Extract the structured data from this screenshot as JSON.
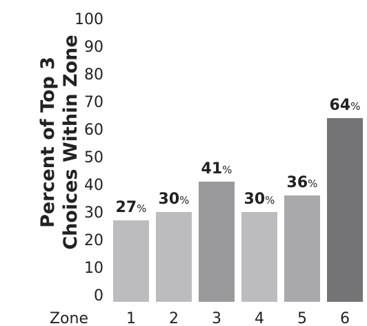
{
  "chart_data": {
    "type": "bar",
    "ylabel_lines": [
      "Percent of Top 3",
      "Choices Within Zone"
    ],
    "xlabel": "Zone",
    "categories": [
      "1",
      "2",
      "3",
      "4",
      "5",
      "6"
    ],
    "values": [
      27,
      30,
      41,
      30,
      36,
      64
    ],
    "value_labels": [
      "27%",
      "30%",
      "41%",
      "30%",
      "36%",
      "64%"
    ],
    "yticks": [
      "0",
      "10",
      "20",
      "30",
      "40",
      "50",
      "60",
      "70",
      "80",
      "90",
      "100"
    ],
    "ylim": [
      0,
      100
    ],
    "grid": false,
    "bar_colors": [
      "#bcbcbe",
      "#bcbcbe",
      "#9a9a9c",
      "#bcbcbe",
      "#a9a9ab",
      "#747476"
    ]
  }
}
